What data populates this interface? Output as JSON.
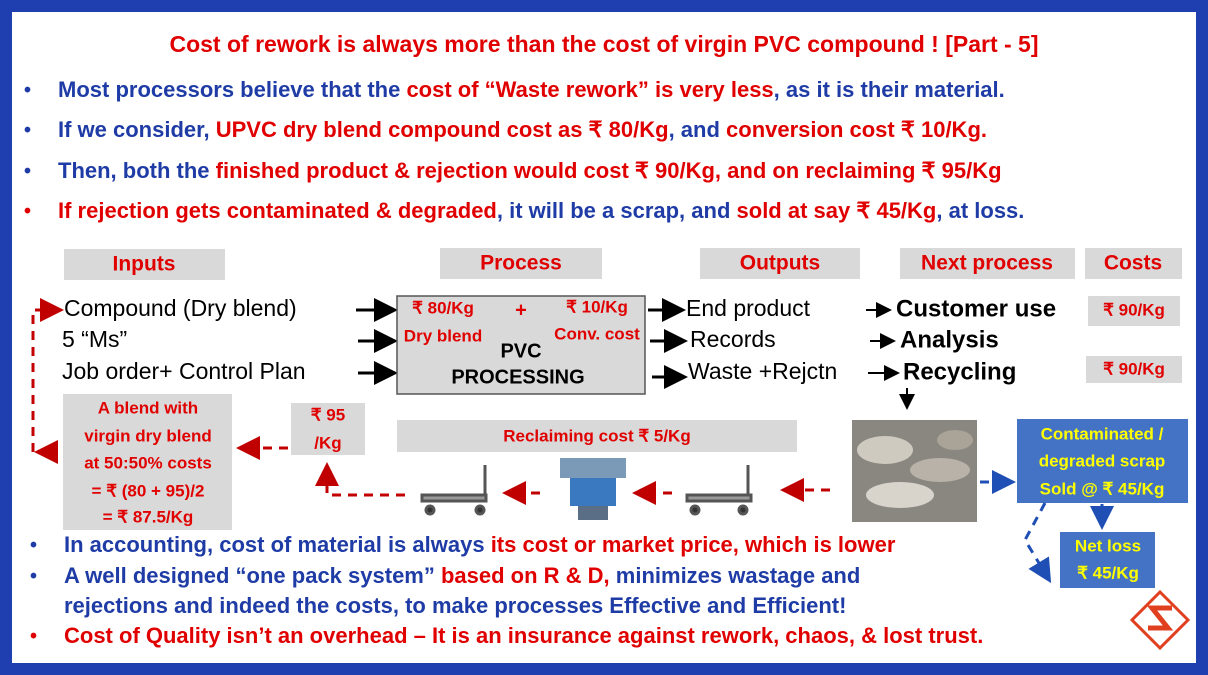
{
  "title": "Cost of rework is always more than the cost of virgin PVC compound ! [Part - 5]",
  "bullets_top": [
    {
      "lines": [
        [
          {
            "text": "Most processors believe that the ",
            "color": "#1f3ca6"
          },
          {
            "text": "cost of “Waste rework” is very less",
            "color": "#e00000"
          },
          {
            "text": ", as it is their material.",
            "color": "#1f3ca6"
          }
        ]
      ]
    },
    {
      "lines": [
        [
          {
            "text": "If we consider, ",
            "color": "#1f3ca6"
          },
          {
            "text": "UPVC dry blend compound cost as ₹ 80/Kg",
            "color": "#e00000"
          },
          {
            "text": ", and ",
            "color": "#1f3ca6"
          },
          {
            "text": "conversion cost ₹ 10/Kg.",
            "color": "#e00000"
          }
        ]
      ]
    },
    {
      "lines": [
        [
          {
            "text": "Then, both the ",
            "color": "#1f3ca6"
          },
          {
            "text": "finished product & rejection would cost ₹ 90/Kg, and on reclaiming ₹ 95/Kg",
            "color": "#e00000"
          }
        ]
      ]
    },
    {
      "lines": [
        [
          {
            "text": "If rejection gets contaminated & degraded",
            "color": "#e00000"
          },
          {
            "text": ", it will be a scrap, and ",
            "color": "#1f3ca6"
          },
          {
            "text": "sold at say ₹ 45/Kg",
            "color": "#e00000"
          },
          {
            "text": ", at loss.",
            "color": "#1f3ca6"
          }
        ]
      ]
    }
  ],
  "headers": [
    "Inputs",
    "Process",
    "Outputs",
    "Next process",
    "Costs"
  ],
  "inputs": [
    "Compound (Dry blend)",
    "5 “Ms”",
    "Job order+ Control Plan"
  ],
  "process": {
    "dry_blend_cost": "₹ 80/Kg",
    "plus": "+",
    "conv_cost": "₹ 10/Kg",
    "dry_blend": "Dry blend",
    "conv_label": "Conv. cost",
    "name": [
      "PVC",
      "PROCESSING"
    ]
  },
  "outputs": [
    "End product",
    "Records",
    "Waste +Rejctn"
  ],
  "next_process": [
    "Customer use",
    "Analysis",
    "Recycling"
  ],
  "costs": [
    "₹ 90/Kg",
    "₹ 90/Kg"
  ],
  "blend_box": [
    "A blend with",
    "virgin dry blend",
    "at 50:50% costs",
    "= ₹ (80 + 95)/2",
    "= ₹ 87.5/Kg"
  ],
  "reclaimed_cost": [
    "₹ 95",
    "/Kg"
  ],
  "reclaiming": "Reclaiming cost ₹ 5/Kg",
  "scrap_box": [
    "Contaminated /",
    "degraded scrap",
    "Sold @ ₹ 45/Kg"
  ],
  "net_loss": [
    "Net loss",
    "₹ 45/Kg"
  ],
  "bullets_bottom": [
    {
      "lines": [
        [
          {
            "text": "In accounting, cost of material is always ",
            "color": "#1f3ca6"
          },
          {
            "text": "its cost or market price, which is lower",
            "color": "#e00000"
          }
        ]
      ]
    },
    {
      "lines": [
        [
          {
            "text": "A well designed “one pack system” ",
            "color": "#1f3ca6"
          },
          {
            "text": "based on R & D,",
            "color": "#e00000"
          },
          {
            "text": " minimizes wastage and",
            "color": "#1f3ca6"
          }
        ],
        [
          {
            "text": "rejections and indeed the costs, to make processes Effective and Efficient!",
            "color": "#1f3ca6"
          }
        ]
      ]
    },
    {
      "lines": [
        [
          {
            "text": "Cost of Quality isn’t an overhead – It is an insurance against rework, chaos, & lost trust.",
            "color": "#e00000"
          }
        ]
      ]
    }
  ]
}
